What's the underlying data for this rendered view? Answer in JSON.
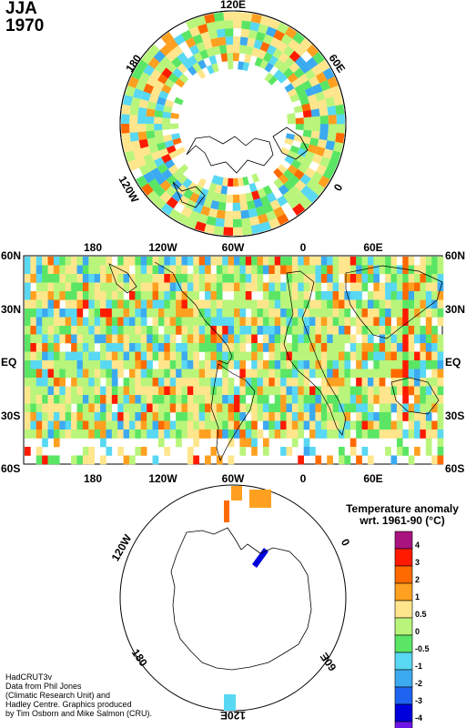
{
  "title": {
    "season": "JJA",
    "year": "1970"
  },
  "north_polar_labels": {
    "top": "120E",
    "left": "180",
    "right": "60E",
    "bottom_left": "120W",
    "bottom_right": "0"
  },
  "equatorial_map": {
    "top_lon_labels": [
      "180",
      "120W",
      "60W",
      "0",
      "60E"
    ],
    "bottom_lon_labels": [
      "180",
      "120W",
      "60W",
      "0",
      "60E"
    ],
    "lat_labels": [
      "60N",
      "30N",
      "EQ",
      "30S",
      "60S"
    ]
  },
  "south_polar_labels": {
    "top_left": "120W",
    "top_right": "0",
    "bottom_left": "180",
    "bottom_right": "60E",
    "bottom": "120E"
  },
  "legend": {
    "title_line1": "Temperature anomaly",
    "title_line2": "wrt. 1961-90  (°C)",
    "ticks": [
      "4",
      "3",
      "2",
      "1",
      "0.5",
      "0",
      "-0.5",
      "-1",
      "-2",
      "-3",
      "-4"
    ],
    "colors": [
      "#a8137f",
      "#ff1a00",
      "#ff6a00",
      "#ffa020",
      "#ffe68c",
      "#b9f57a",
      "#5ae664",
      "#58d8f2",
      "#3caaf0",
      "#1f64f0",
      "#0000dc",
      "#6e14e6"
    ]
  },
  "credits": [
    "HadCRUT3v",
    "Data from Phil Jones",
    "(Climatic Research Unit) and",
    "Hadley Centre.  Graphics produced",
    "by Tim Osborn and Mike Salmon (CRU)."
  ]
}
